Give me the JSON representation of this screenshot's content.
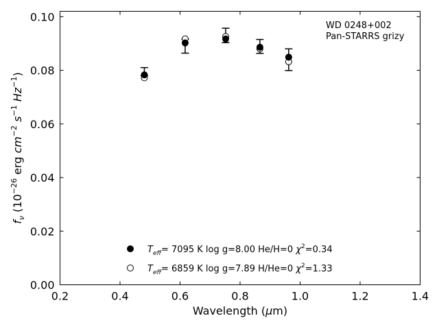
{
  "chart_data": {
    "type": "scatter",
    "xlabel": "Wavelength (μm)",
    "ylabel": "f_ν (10^−26 erg cm^−2 s^−1 Hz^−1)",
    "xlim": [
      0.2,
      1.4
    ],
    "ylim": [
      0.0,
      0.102
    ],
    "x_ticks": [
      0.2,
      0.4,
      0.6,
      0.8,
      1.0,
      1.2,
      1.4
    ],
    "x_tick_labels": [
      "0.2",
      "0.4",
      "0.6",
      "0.8",
      "1.0",
      "1.2",
      "1.4"
    ],
    "y_ticks": [
      0.0,
      0.02,
      0.04,
      0.06,
      0.08,
      0.1
    ],
    "y_tick_labels": [
      "0.00",
      "0.02",
      "0.04",
      "0.06",
      "0.08",
      "0.10"
    ],
    "annotation": [
      "WD 0248+002",
      "Pan-STARRS grizy"
    ],
    "grid": false,
    "legend_position": "bottom-center",
    "observed": {
      "x": [
        0.481,
        0.617,
        0.752,
        0.866,
        0.962
      ],
      "y": [
        0.0789,
        0.0903,
        0.0931,
        0.0885,
        0.084
      ],
      "yerr_low": [
        0.078,
        0.0864,
        0.0903,
        0.0863,
        0.0799
      ],
      "yerr_high": [
        0.081,
        0.0916,
        0.0957,
        0.0915,
        0.088
      ]
    },
    "series": [
      {
        "marker": "filled-circle",
        "color": "#000000",
        "legend": {
          "teff": "7095 K",
          "logg": "log g=8.00",
          "comp": "He/H=0",
          "chi": "=0.34"
        },
        "x": [
          0.481,
          0.617,
          0.752,
          0.866,
          0.962
        ],
        "y": [
          0.0783,
          0.0902,
          0.0917,
          0.0886,
          0.0849
        ]
      },
      {
        "marker": "open-circle",
        "color": "#000000",
        "legend": {
          "teff": "6859 K",
          "logg": "log g=7.89",
          "comp": "H/He=0",
          "chi": "=1.33"
        },
        "x": [
          0.481,
          0.617,
          0.752,
          0.866,
          0.962
        ],
        "y": [
          0.0772,
          0.0917,
          0.0926,
          0.088,
          0.0832
        ]
      }
    ]
  }
}
